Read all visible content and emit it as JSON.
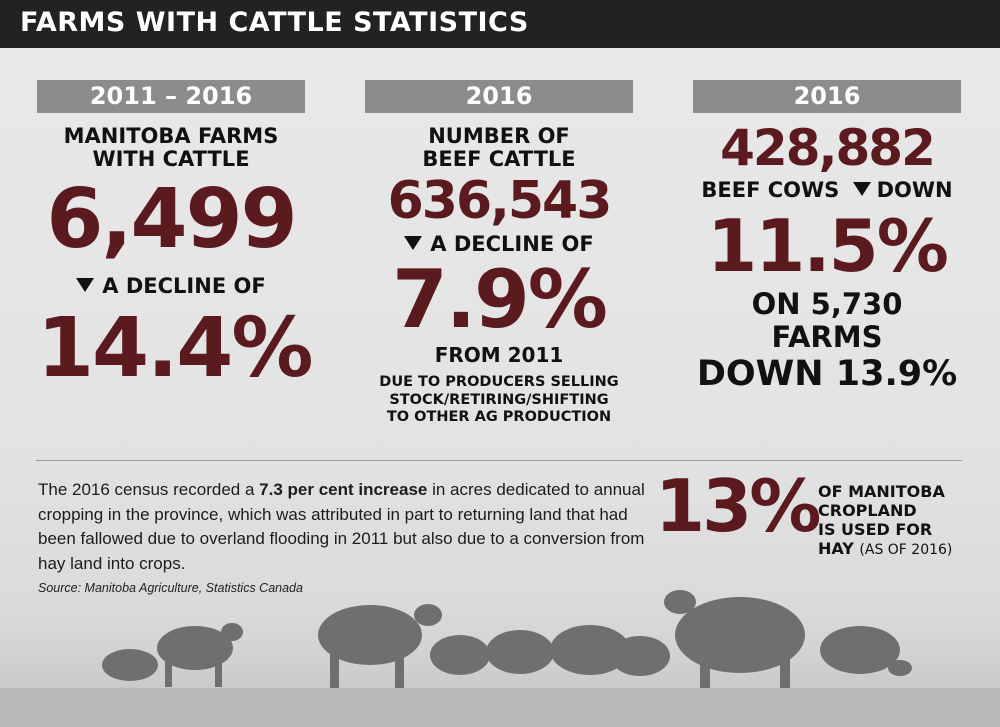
{
  "header": {
    "title": "FARMS WITH CATTLE STATISTICS"
  },
  "col1": {
    "year": "2011 – 2016",
    "label_line1": "MANITOBA FARMS",
    "label_line2": "WITH CATTLE",
    "big_value": "6,499",
    "decline_label": "A DECLINE OF",
    "decline_value": "14.4%"
  },
  "col2": {
    "year": "2016",
    "label_line1": "NUMBER OF",
    "label_line2": "BEEF CATTLE",
    "big_value": "636,543",
    "decline_label": "A DECLINE OF",
    "decline_value": "7.9%",
    "from": "FROM 2011",
    "note_line1": "DUE TO PRODUCERS SELLING",
    "note_line2": "STOCK/RETIRING/SHIFTING",
    "note_line3": "TO OTHER AG PRODUCTION"
  },
  "col3": {
    "year": "2016",
    "big_value": "428,882",
    "cows_label": "BEEF COWS",
    "down_label": "DOWN",
    "down_value": "11.5%",
    "farms_line": "ON 5,730 FARMS",
    "farms_down": "DOWN 13.9%"
  },
  "bottom": {
    "para_1": "The 2016 census recorded a ",
    "para_bold": "7.3 per cent increase",
    "para_2": " in acres dedicated to annual cropping in the province, which was attributed in part to returning land that had been fallowed due to overland flooding in 2011 but also due to a conversion from hay land into crops.",
    "source": "Source: Manitoba Agriculture, Statistics Canada",
    "hay_pct": "13%",
    "hay_line1": "OF MANITOBA",
    "hay_line2": "CROPLAND",
    "hay_line3": "IS USED FOR",
    "hay_line4": "HAY",
    "hay_small": "(AS OF 2016)"
  },
  "colors": {
    "accent": "#5a1a1e",
    "tab": "#8c8c8c",
    "title_bar": "#222222"
  },
  "decor": {
    "triangle_icon": "down-triangle-icon",
    "background": "cattle-herd-photo"
  }
}
